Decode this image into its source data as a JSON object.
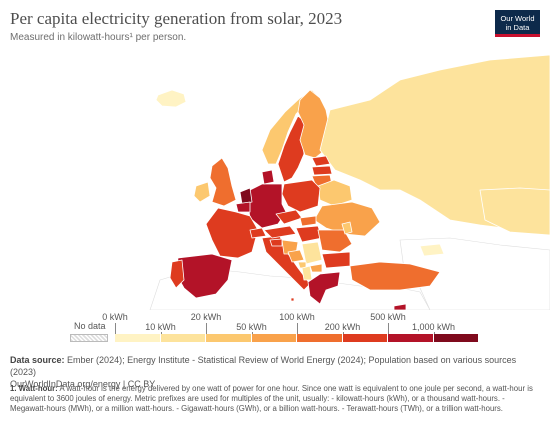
{
  "header": {
    "title": "Per capita electricity generation from solar, 2023",
    "subtitle": "Measured in kilowatt-hours¹ per person.",
    "logo_line1": "Our World",
    "logo_line2": "in Data"
  },
  "colors": {
    "no_data": "#e8e8e8",
    "scale": [
      "#fff3c4",
      "#fde39c",
      "#fcc86f",
      "#f9a24b",
      "#ef6e2e",
      "#de3b1f",
      "#b31328",
      "#7f0a1d"
    ],
    "land_outside": "#ffffff",
    "border": "#ffffff",
    "sea": "#ffffff"
  },
  "legend": {
    "no_data_label": "No data",
    "bins": [
      {
        "label": "0 kWh",
        "row": "top"
      },
      {
        "label": "10 kWh",
        "row": "bottom"
      },
      {
        "label": "20 kWh",
        "row": "top"
      },
      {
        "label": "50 kWh",
        "row": "bottom"
      },
      {
        "label": "100 kWh",
        "row": "top"
      },
      {
        "label": "200 kWh",
        "row": "bottom"
      },
      {
        "label": "500 kWh",
        "row": "top"
      },
      {
        "label": "1,000 kWh",
        "row": "bottom"
      }
    ]
  },
  "map": {
    "countries": [
      {
        "id": "iceland",
        "name": "Iceland",
        "level": 0
      },
      {
        "id": "norway",
        "name": "Norway",
        "level": 2
      },
      {
        "id": "sweden",
        "name": "Sweden",
        "level": 5
      },
      {
        "id": "finland",
        "name": "Finland",
        "level": 3
      },
      {
        "id": "russia",
        "name": "Russia",
        "level": 1
      },
      {
        "id": "estonia",
        "name": "Estonia",
        "level": 5
      },
      {
        "id": "latvia",
        "name": "Latvia",
        "level": 5
      },
      {
        "id": "lithuania",
        "name": "Lithuania",
        "level": 4
      },
      {
        "id": "belarus",
        "name": "Belarus",
        "level": 2
      },
      {
        "id": "ukraine",
        "name": "Ukraine",
        "level": 3
      },
      {
        "id": "poland",
        "name": "Poland",
        "level": 5
      },
      {
        "id": "germany",
        "name": "Germany",
        "level": 6
      },
      {
        "id": "netherlands",
        "name": "Netherlands",
        "level": 7
      },
      {
        "id": "belgium",
        "name": "Belgium",
        "level": 6
      },
      {
        "id": "denmark",
        "name": "Denmark",
        "level": 6
      },
      {
        "id": "uk",
        "name": "United Kingdom",
        "level": 4
      },
      {
        "id": "ireland",
        "name": "Ireland",
        "level": 2
      },
      {
        "id": "france",
        "name": "France",
        "level": 5
      },
      {
        "id": "spain",
        "name": "Spain",
        "level": 6
      },
      {
        "id": "portugal",
        "name": "Portugal",
        "level": 5
      },
      {
        "id": "italy",
        "name": "Italy",
        "level": 5
      },
      {
        "id": "switzerland",
        "name": "Switzerland",
        "level": 5
      },
      {
        "id": "austria",
        "name": "Austria",
        "level": 5
      },
      {
        "id": "czechia",
        "name": "Czechia",
        "level": 5
      },
      {
        "id": "hungary",
        "name": "Hungary",
        "level": 5
      },
      {
        "id": "slovakia",
        "name": "Slovakia",
        "level": 4
      },
      {
        "id": "romania",
        "name": "Romania",
        "level": 4
      },
      {
        "id": "moldova",
        "name": "Moldova",
        "level": 2
      },
      {
        "id": "bulgaria",
        "name": "Bulgaria",
        "level": 5
      },
      {
        "id": "serbia",
        "name": "Serbia",
        "level": 1
      },
      {
        "id": "croatia",
        "name": "Croatia",
        "level": 3
      },
      {
        "id": "slovenia",
        "name": "Slovenia",
        "level": 5
      },
      {
        "id": "bosnia",
        "name": "Bosnia and Herzegovina",
        "level": 3
      },
      {
        "id": "montenegro",
        "name": "Montenegro",
        "level": 2
      },
      {
        "id": "albania",
        "name": "Albania",
        "level": 1
      },
      {
        "id": "north_macedonia",
        "name": "North Macedonia",
        "level": 3
      },
      {
        "id": "greece",
        "name": "Greece",
        "level": 6
      },
      {
        "id": "turkey",
        "name": "Turkey",
        "level": 4
      },
      {
        "id": "cyprus",
        "name": "Cyprus",
        "level": 6
      },
      {
        "id": "kazakhstan",
        "name": "Kazakhstan",
        "level": 1
      },
      {
        "id": "georgia",
        "name": "Georgia",
        "level": 0
      },
      {
        "id": "malta",
        "name": "Malta",
        "level": 5
      }
    ]
  },
  "sources": {
    "label": "Data source:",
    "text": "Ember (2024); Energy Institute - Statistical Review of World Energy (2024); Population based on various sources (2023)",
    "line2": "OurWorldInData.org/energy | CC BY"
  },
  "footnote": {
    "label": "1. Watt-hour:",
    "text": "A watt-hour is the energy delivered by one watt of power for one hour. Since one watt is equivalent to one joule per second, a watt-hour is equivalent to 3600 joules of energy. Metric prefixes are used for multiples of the unit, usually: - kilowatt-hours (kWh), or a thousand watt-hours. - Megawatt-hours (MWh), or a million watt-hours. - Gigawatt-hours (GWh), or a billion watt-hours. - Terawatt-hours (TWh), or a trillion watt-hours."
  }
}
